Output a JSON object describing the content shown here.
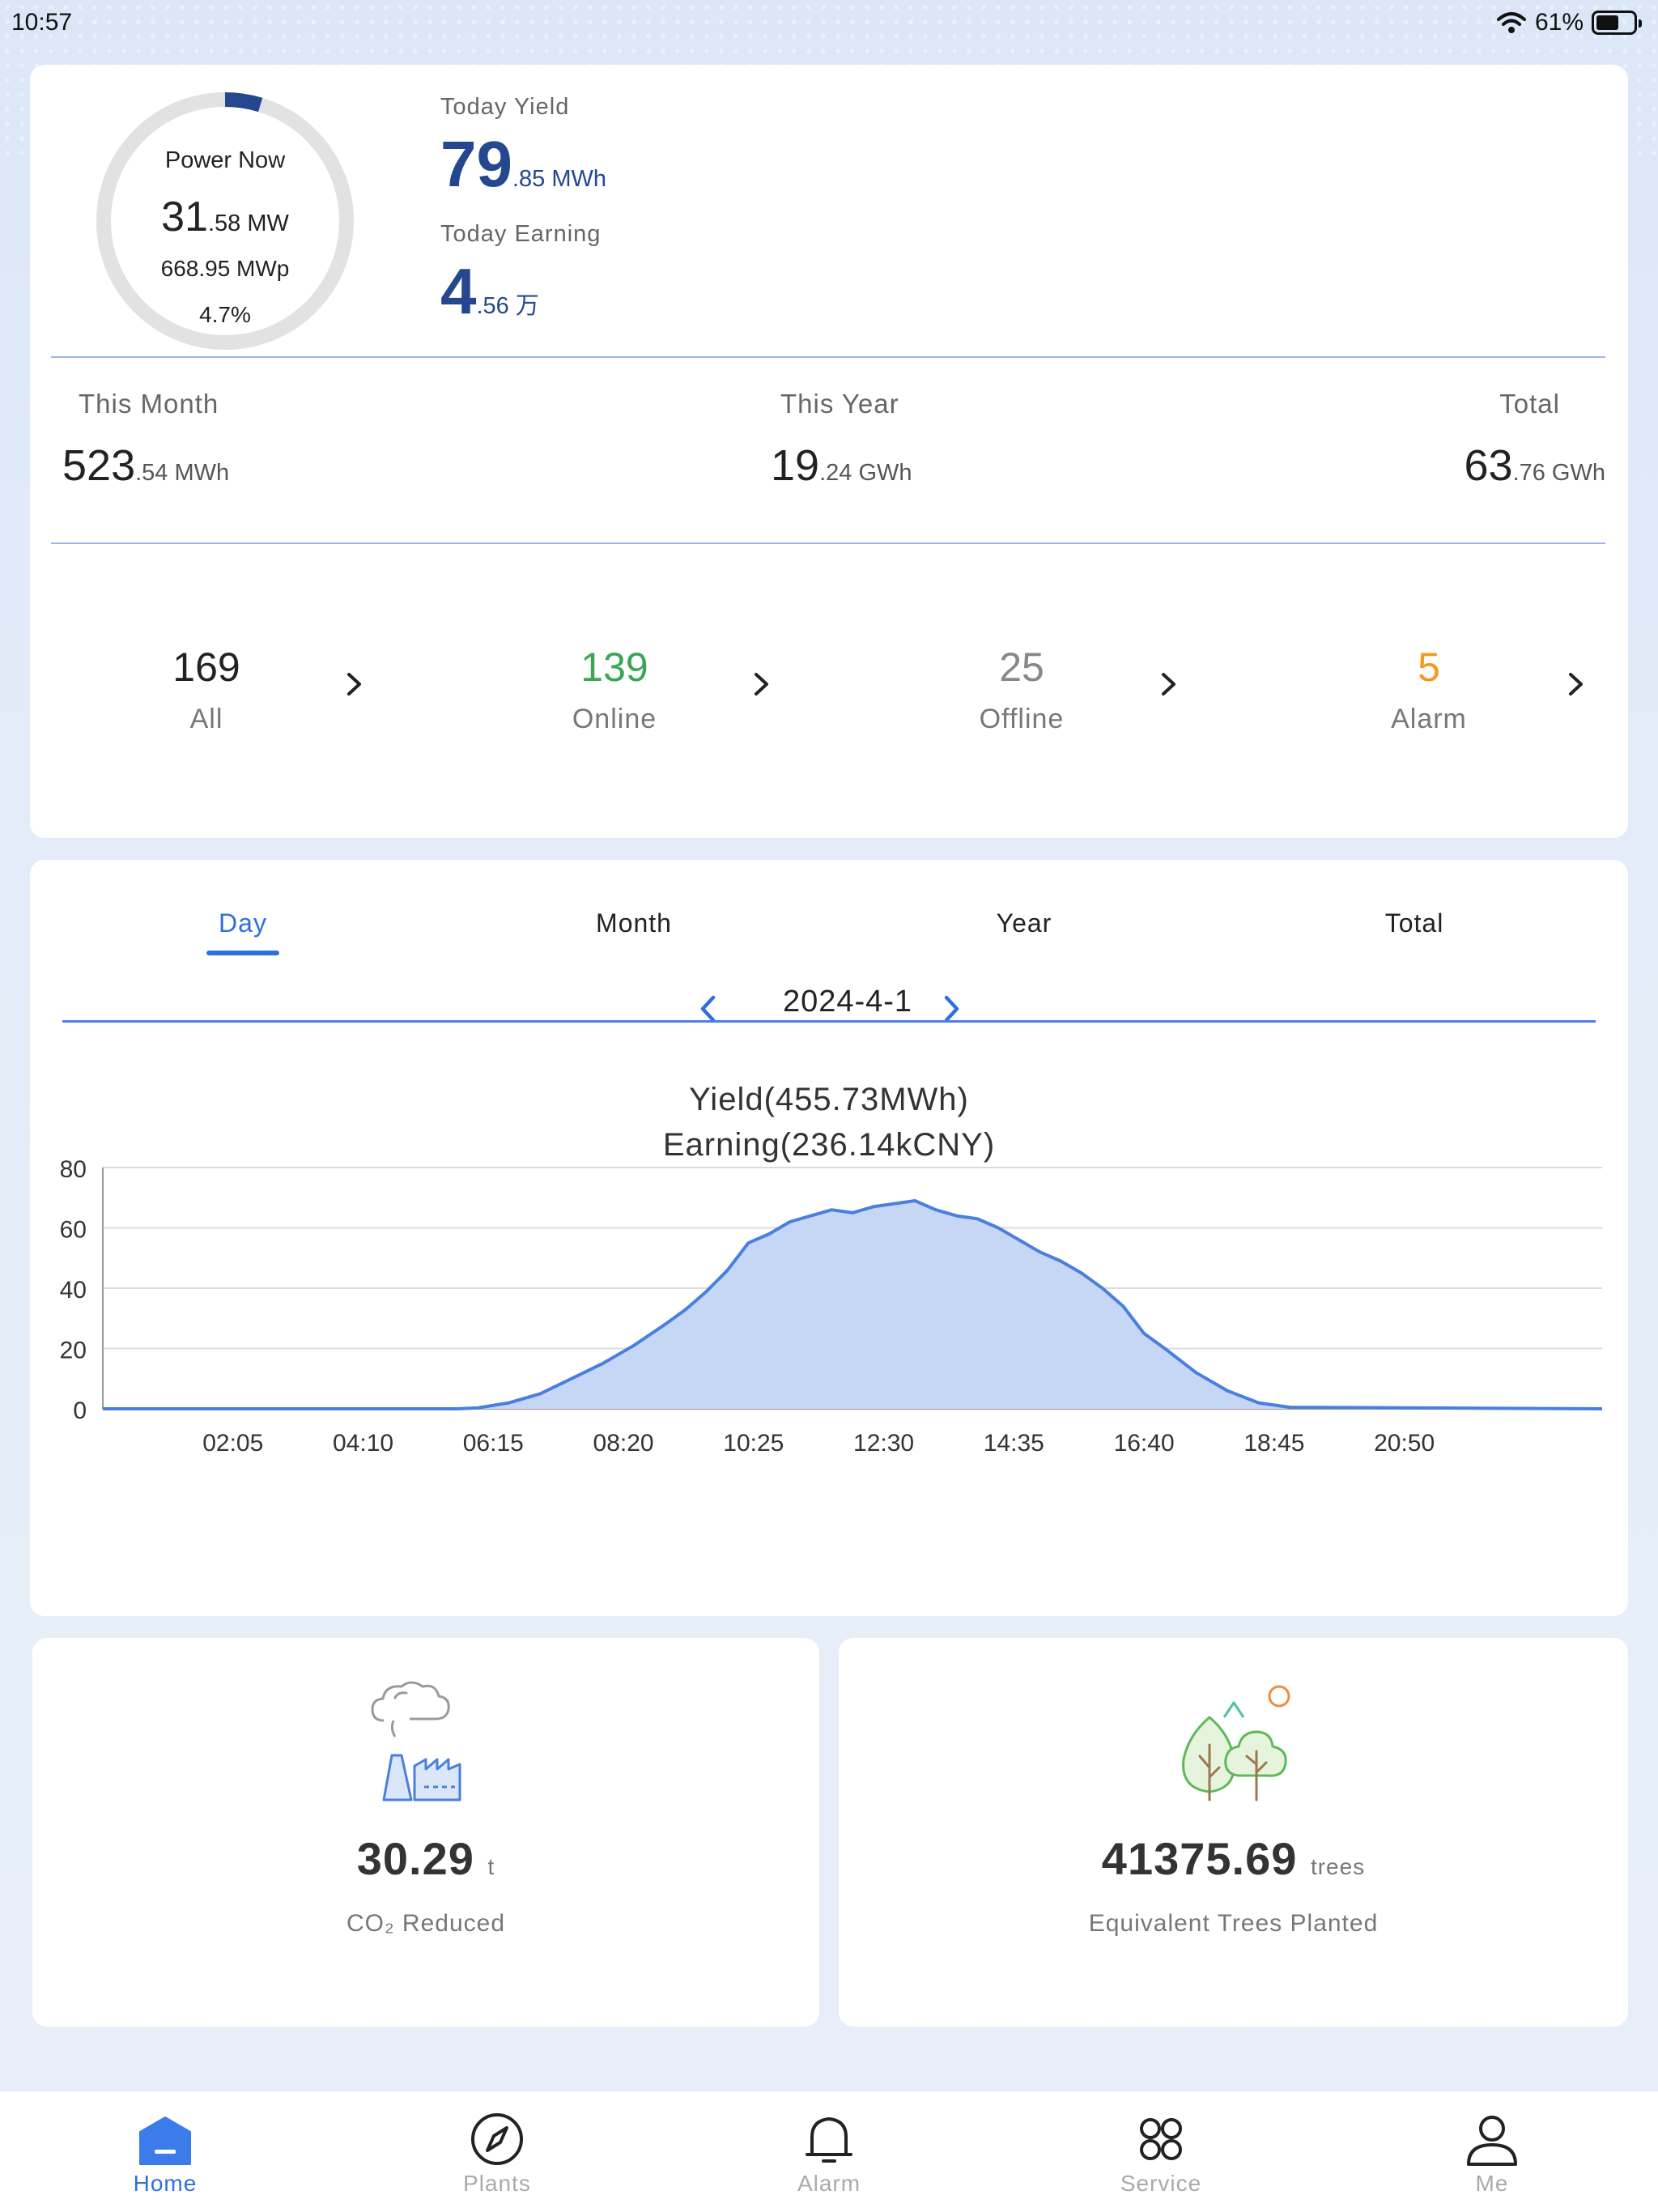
{
  "status_bar": {
    "time": "10:57",
    "battery": "61%",
    "battery_level": 0.61
  },
  "summary": {
    "power_now_label": "Power Now",
    "power_now_int": "31",
    "power_now_dec": ".58 MW",
    "capacity": "668.95 MWp",
    "percent": "4.7%",
    "percent_value": 0.047,
    "today_yield_label": "Today Yield",
    "today_yield_int": "79",
    "today_yield_dec": ".85 MWh",
    "today_earning_label": "Today Earning",
    "today_earning_int": "4",
    "today_earning_dec": ".56 万",
    "this_month_label": "This Month",
    "this_month_int": "523",
    "this_month_dec": ".54 MWh",
    "this_year_label": "This Year",
    "this_year_int": "19",
    "this_year_dec": ".24 GWh",
    "total_label": "Total",
    "total_int": "63",
    "total_dec": ".76 GWh"
  },
  "devices": [
    {
      "count": "169",
      "label": "All",
      "color": "#222222"
    },
    {
      "count": "139",
      "label": "Online",
      "color": "#3aa655"
    },
    {
      "count": "25",
      "label": "Offline",
      "color": "#888888"
    },
    {
      "count": "5",
      "label": "Alarm",
      "color": "#f39a1e"
    }
  ],
  "chart_panel": {
    "tabs": [
      "Day",
      "Month",
      "Year",
      "Total"
    ],
    "active_tab": "Day",
    "date": "2024-4-1",
    "title_line1": "Yield(455.73MWh)",
    "title_line2": "Earning(236.14kCNY)"
  },
  "chart_data": {
    "type": "area",
    "title": "Yield(455.73MWh) Earning(236.14kCNY)",
    "xlabel": "",
    "ylabel": "",
    "ylim": [
      0,
      80
    ],
    "yticks": [
      "0",
      "20",
      "40",
      "60",
      "80"
    ],
    "xtick_labels": [
      "02:05",
      "04:10",
      "06:15",
      "08:20",
      "10:25",
      "12:30",
      "14:35",
      "16:40",
      "18:45",
      "20:50"
    ],
    "x_range_minutes": [
      0,
      1440
    ],
    "grid": true,
    "color": "#4a7fe0",
    "fill": "#c6d7f5",
    "series": [
      {
        "x": [
          "00:00",
          "05:40",
          "06:00",
          "06:30",
          "07:00",
          "07:30",
          "08:00",
          "08:30",
          "09:00",
          "09:20",
          "09:40",
          "10:00",
          "10:20",
          "10:40",
          "11:00",
          "11:20",
          "11:40",
          "12:00",
          "12:20",
          "12:40",
          "13:00",
          "13:20",
          "13:40",
          "14:00",
          "14:20",
          "14:40",
          "15:00",
          "15:20",
          "15:40",
          "16:00",
          "16:20",
          "16:40",
          "17:00",
          "17:30",
          "18:00",
          "18:30",
          "19:00",
          "24:00"
        ],
        "values": [
          0,
          0,
          0.3,
          2,
          5,
          10,
          15,
          21,
          28,
          33,
          39,
          46,
          55,
          58,
          62,
          64,
          66,
          65,
          67,
          68,
          69,
          66,
          64,
          63,
          60,
          56,
          52,
          49,
          45,
          40,
          34,
          25,
          20,
          12,
          6,
          2,
          0.5,
          0
        ]
      }
    ]
  },
  "eco": {
    "co2_value": "30.29",
    "co2_unit": "t",
    "co2_label": "CO₂ Reduced",
    "trees_value": "41375.69",
    "trees_unit": "trees",
    "trees_label": "Equivalent Trees Planted"
  },
  "tabbar": {
    "items": [
      {
        "label": "Home",
        "icon": "home-icon"
      },
      {
        "label": "Plants",
        "icon": "compass-icon"
      },
      {
        "label": "Alarm",
        "icon": "bell-icon"
      },
      {
        "label": "Service",
        "icon": "service-grid-icon"
      },
      {
        "label": "Me",
        "icon": "person-icon"
      }
    ],
    "active": "Home"
  }
}
